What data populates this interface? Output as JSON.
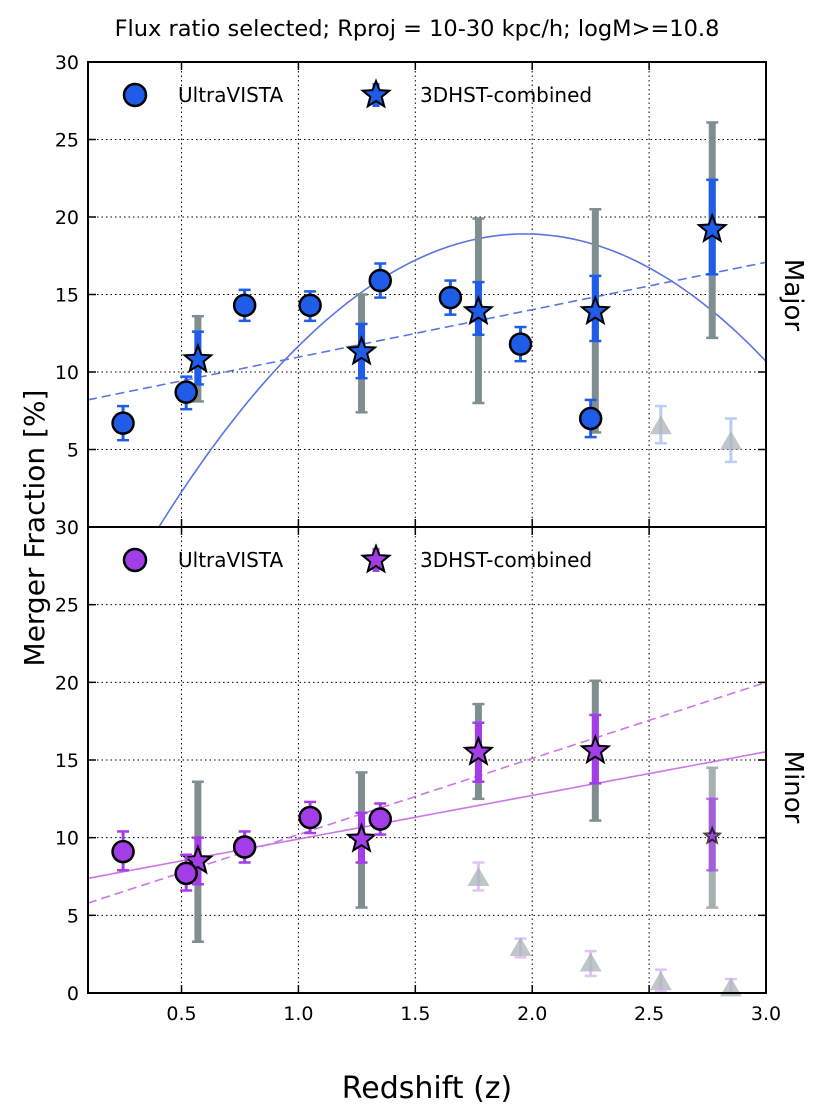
{
  "title": "Flux ratio selected; Rproj = 10-30 kpc/h; logM>=10.8",
  "xlabel": "Redshift (z)",
  "ylabel": "Merger Fraction [%]",
  "colors": {
    "major": "#1f5ce8",
    "major_fit": "#5b74e0",
    "minor": "#a23de8",
    "minor_fit": "#cc77e8",
    "outer_err": "#7f8f8f",
    "ghost": "#a9b4b7"
  },
  "chart_data": [
    {
      "type": "scatter",
      "panel": "Major",
      "xlim": [
        0.1,
        3.0
      ],
      "ylim": [
        0,
        30
      ],
      "xticks": [
        0.5,
        1.0,
        1.5,
        2.0,
        2.5,
        3.0
      ],
      "xtick_labels": [
        "0.5",
        "1.0",
        "1.5",
        "2.0",
        "2.5",
        "3.0"
      ],
      "yticks": [
        5,
        10,
        15,
        20,
        25,
        30
      ],
      "ytick_labels": [
        "5",
        "10",
        "15",
        "20",
        "25",
        "30"
      ],
      "grid": true,
      "legend": [
        "UltraVISTA",
        "3DHST-combined"
      ],
      "legend_position": "top-left",
      "series": [
        {
          "name": "UltraVISTA",
          "marker": "circle",
          "points": [
            {
              "x": 0.25,
              "y": 6.7,
              "lo": 5.6,
              "hi": 7.8
            },
            {
              "x": 0.52,
              "y": 8.7,
              "lo": 7.6,
              "hi": 9.7
            },
            {
              "x": 0.77,
              "y": 14.3,
              "lo": 13.3,
              "hi": 15.3
            },
            {
              "x": 1.05,
              "y": 14.3,
              "lo": 13.3,
              "hi": 15.2
            },
            {
              "x": 1.35,
              "y": 15.9,
              "lo": 14.8,
              "hi": 17.0
            },
            {
              "x": 1.65,
              "y": 14.8,
              "lo": 13.7,
              "hi": 15.9
            },
            {
              "x": 1.95,
              "y": 11.8,
              "lo": 10.7,
              "hi": 12.9
            },
            {
              "x": 2.25,
              "y": 7.0,
              "lo": 5.8,
              "hi": 8.2
            }
          ]
        },
        {
          "name": "3DHST-combined",
          "marker": "star",
          "points": [
            {
              "x": 0.57,
              "y": 10.8,
              "lo": 9.2,
              "hi": 12.6,
              "lo2": 8.1,
              "hi2": 13.6
            },
            {
              "x": 1.27,
              "y": 11.3,
              "lo": 9.6,
              "hi": 13.1,
              "lo2": 7.4,
              "hi2": 15.0
            },
            {
              "x": 1.77,
              "y": 13.9,
              "lo": 12.4,
              "hi": 15.8,
              "lo2": 8.0,
              "hi2": 19.9
            },
            {
              "x": 2.27,
              "y": 13.9,
              "lo": 12.0,
              "hi": 16.2,
              "lo2": 6.1,
              "hi2": 20.5
            },
            {
              "x": 2.77,
              "y": 19.2,
              "lo": 16.3,
              "hi": 22.4,
              "lo2": 12.2,
              "hi2": 26.1
            }
          ]
        },
        {
          "name": "faded",
          "marker": "triangle",
          "points": [
            {
              "x": 2.55,
              "y": 6.5,
              "lo": 5.4,
              "hi": 7.8
            },
            {
              "x": 2.85,
              "y": 5.5,
              "lo": 4.2,
              "hi": 7.0
            }
          ]
        }
      ],
      "fits": [
        {
          "style": "solid",
          "form": "quadratic",
          "coef": [
            -7.72,
            30.39,
            -11.0
          ]
        },
        {
          "style": "dashed",
          "form": "linear",
          "coef": [
            3.06,
            7.9
          ]
        }
      ]
    },
    {
      "type": "scatter",
      "panel": "Minor",
      "xlim": [
        0.1,
        3.0
      ],
      "ylim": [
        0,
        30
      ],
      "xticks": [
        0.5,
        1.0,
        1.5,
        2.0,
        2.5,
        3.0
      ],
      "xtick_labels": [
        "0.5",
        "1.0",
        "1.5",
        "2.0",
        "2.5",
        "3.0"
      ],
      "yticks": [
        0,
        5,
        10,
        15,
        20,
        25,
        30
      ],
      "ytick_labels": [
        "0",
        "5",
        "10",
        "15",
        "20",
        "25",
        "30"
      ],
      "grid": true,
      "legend": [
        "UltraVISTA",
        "3DHST-combined"
      ],
      "legend_position": "top-left",
      "series": [
        {
          "name": "UltraVISTA",
          "marker": "circle",
          "points": [
            {
              "x": 0.25,
              "y": 9.1,
              "lo": 7.9,
              "hi": 10.4
            },
            {
              "x": 0.52,
              "y": 7.7,
              "lo": 6.6,
              "hi": 8.9
            },
            {
              "x": 0.77,
              "y": 9.4,
              "lo": 8.4,
              "hi": 10.4
            },
            {
              "x": 1.05,
              "y": 11.3,
              "lo": 10.3,
              "hi": 12.3
            },
            {
              "x": 1.35,
              "y": 11.2,
              "lo": 10.2,
              "hi": 12.2
            }
          ]
        },
        {
          "name": "3DHST-combined",
          "marker": "star",
          "points": [
            {
              "x": 0.57,
              "y": 8.5,
              "lo": 7.0,
              "hi": 10.0,
              "lo2": 3.3,
              "hi2": 13.6
            },
            {
              "x": 1.27,
              "y": 9.9,
              "lo": 8.4,
              "hi": 11.6,
              "lo2": 5.5,
              "hi2": 14.2
            },
            {
              "x": 1.77,
              "y": 15.5,
              "lo": 13.6,
              "hi": 17.4,
              "lo2": 12.5,
              "hi2": 18.6
            },
            {
              "x": 2.27,
              "y": 15.6,
              "lo": 13.5,
              "hi": 17.9,
              "lo2": 11.1,
              "hi2": 20.1
            },
            {
              "x": 2.77,
              "y": 10.1,
              "lo": 7.9,
              "hi": 12.5,
              "lo2": 5.5,
              "hi2": 14.5,
              "faded": true
            }
          ]
        },
        {
          "name": "faded",
          "marker": "triangle",
          "points": [
            {
              "x": 1.77,
              "y": 7.4,
              "lo": 6.6,
              "hi": 8.4
            },
            {
              "x": 1.95,
              "y": 2.9,
              "lo": 2.3,
              "hi": 3.5
            },
            {
              "x": 2.25,
              "y": 1.9,
              "lo": 1.1,
              "hi": 2.7
            },
            {
              "x": 2.55,
              "y": 0.7,
              "lo": 0.1,
              "hi": 1.5
            },
            {
              "x": 2.85,
              "y": 0.3,
              "lo": 0.0,
              "hi": 0.9
            }
          ]
        }
      ],
      "fits": [
        {
          "style": "solid",
          "form": "linear",
          "coef": [
            2.81,
            7.1
          ]
        },
        {
          "style": "dashed",
          "form": "linear",
          "coef": [
            4.9,
            5.3
          ]
        }
      ]
    }
  ]
}
